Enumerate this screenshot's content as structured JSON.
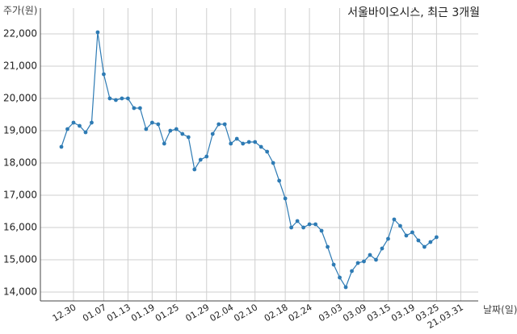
{
  "chart_data": {
    "type": "line",
    "title": "서울바이오시스, 최근 3개월",
    "ylabel": "주가(원)",
    "xlabel": "날짜(일)",
    "ylim": [
      14000,
      22000
    ],
    "yticks": [
      "14,000",
      "15,000",
      "16,000",
      "17,000",
      "18,000",
      "19,000",
      "20,000",
      "21,000",
      "22,000"
    ],
    "ytick_values": [
      14000,
      15000,
      16000,
      17000,
      18000,
      19000,
      20000,
      21000,
      22000
    ],
    "xtick_labels": [
      "12.30",
      "01.07",
      "01.13",
      "01.19",
      "01.25",
      "01.29",
      "02.04",
      "02.10",
      "02.18",
      "02.24",
      "03.03",
      "03.09",
      "03.15",
      "03.19",
      "03.25",
      "21.03.31"
    ],
    "xtick_indices": [
      2,
      7,
      11,
      15,
      19,
      24,
      28,
      32,
      37,
      41,
      46,
      50,
      54,
      58,
      62,
      66
    ],
    "grid": true,
    "series": [
      {
        "color": "#2e7bb4",
        "values": [
          18500,
          19050,
          19250,
          19150,
          18950,
          19250,
          22050,
          20750,
          20000,
          19950,
          20000,
          20000,
          19700,
          19700,
          19050,
          19250,
          19200,
          18600,
          19000,
          19050,
          18900,
          18800,
          17800,
          18100,
          18200,
          18900,
          19200,
          19200,
          18600,
          18750,
          18600,
          18650,
          18650,
          18500,
          18350,
          18000,
          17450,
          16900,
          16000,
          16200,
          16000,
          16100,
          16100,
          15900,
          15400,
          14850,
          14450,
          14150,
          14650,
          14900,
          14950,
          15150,
          15000,
          15350,
          15650,
          16250,
          16050,
          15750,
          15850,
          15600,
          15400,
          15550,
          15700
        ]
      }
    ]
  }
}
